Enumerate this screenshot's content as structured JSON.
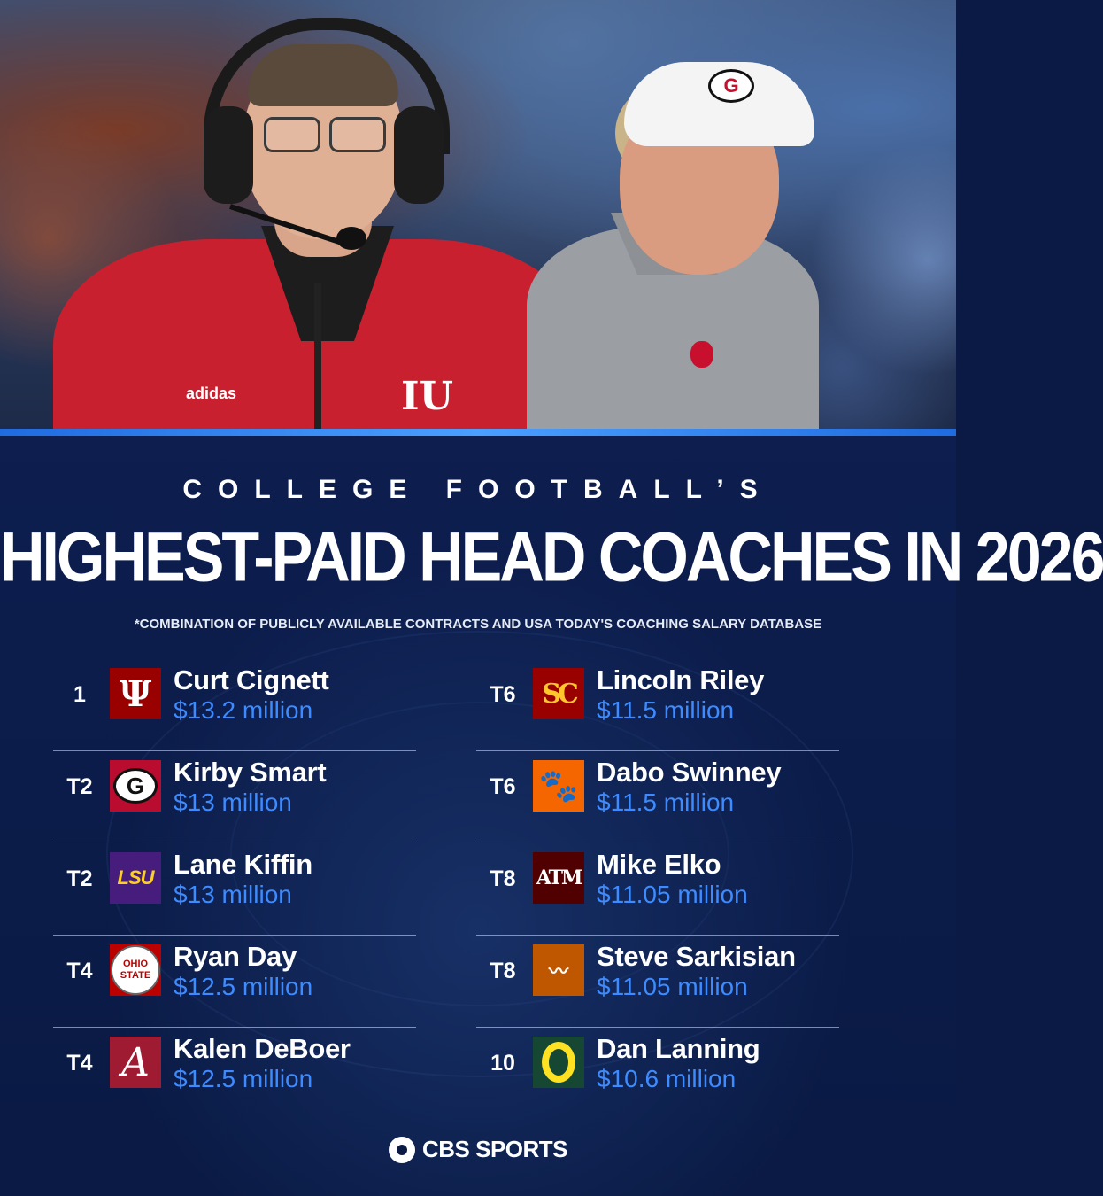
{
  "header": {
    "subtitle": "COLLEGE FOOTBALL’S",
    "title": "HIGHEST-PAID HEAD COACHES IN 2026",
    "note": "*COMBINATION OF PUBLICLY AVAILABLE CONTRACTS AND USA TODAY'S COACHING SALARY DATABASE"
  },
  "photo": {
    "left_coach_logo": "IU",
    "left_coach_brand": "adidas",
    "right_visor_letter": "G"
  },
  "rankings": {
    "left": [
      {
        "rank": "1",
        "name": "Curt Cignett",
        "salary": "$13.2 million",
        "logo_icon": "indiana-logo-icon",
        "logo_text": "Ψ"
      },
      {
        "rank": "T2",
        "name": "Kirby Smart",
        "salary": "$13 million",
        "logo_icon": "georgia-logo-icon",
        "logo_text": "G"
      },
      {
        "rank": "T2",
        "name": "Lane Kiffin",
        "salary": "$13 million",
        "logo_icon": "lsu-logo-icon",
        "logo_text": "LSU"
      },
      {
        "rank": "T4",
        "name": "Ryan Day",
        "salary": "$12.5 million",
        "logo_icon": "ohio-state-logo-icon",
        "logo_text": "OHIO STATE"
      },
      {
        "rank": "T4",
        "name": "Kalen DeBoer",
        "salary": "$12.5 million",
        "logo_icon": "alabama-logo-icon",
        "logo_text": "A"
      }
    ],
    "right": [
      {
        "rank": "T6",
        "name": "Lincoln Riley",
        "salary": "$11.5 million",
        "logo_icon": "usc-logo-icon",
        "logo_text": "SC"
      },
      {
        "rank": "T6",
        "name": "Dabo Swinney",
        "salary": "$11.5 million",
        "logo_icon": "clemson-paw-icon",
        "logo_text": "🐾"
      },
      {
        "rank": "T8",
        "name": "Mike Elko",
        "salary": "$11.05 million",
        "logo_icon": "texas-am-logo-icon",
        "logo_text": "ATM"
      },
      {
        "rank": "T8",
        "name": "Steve Sarkisian",
        "salary": "$11.05 million",
        "logo_icon": "texas-longhorn-icon",
        "logo_text": "〰"
      },
      {
        "rank": "10",
        "name": "Dan Lanning",
        "salary": "$10.6 million",
        "logo_icon": "oregon-logo-icon",
        "logo_text": ""
      }
    ]
  },
  "footer": {
    "brand": "CBS SPORTS"
  },
  "colors": {
    "background": "#0b1a45",
    "salary": "#3d8bff",
    "divider": "#2f7ff0"
  }
}
